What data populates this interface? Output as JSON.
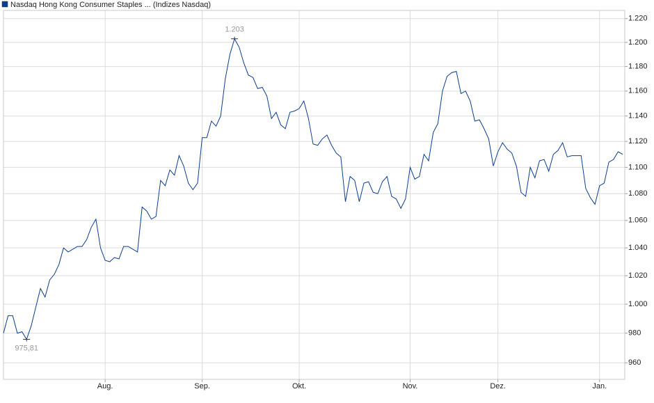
{
  "chart_data": {
    "type": "line",
    "legend": "top-left",
    "grid": true,
    "log": true,
    "categories": [
      null,
      null,
      null,
      null,
      null,
      null,
      null,
      null,
      null,
      null,
      null,
      null,
      null,
      null,
      null,
      null,
      null,
      null,
      null,
      null,
      null,
      null,
      "Aug.",
      null,
      null,
      null,
      null,
      null,
      null,
      null,
      null,
      null,
      null,
      null,
      null,
      null,
      null,
      null,
      null,
      null,
      null,
      null,
      null,
      "Sep.",
      null,
      null,
      null,
      null,
      null,
      null,
      null,
      null,
      null,
      null,
      null,
      null,
      null,
      null,
      null,
      null,
      null,
      null,
      null,
      null,
      "Okt.",
      null,
      null,
      null,
      null,
      null,
      null,
      null,
      null,
      null,
      null,
      null,
      null,
      null,
      null,
      null,
      null,
      null,
      null,
      null,
      null,
      null,
      null,
      null,
      "Nov.",
      null,
      null,
      null,
      null,
      null,
      null,
      null,
      null,
      null,
      null,
      null,
      null,
      null,
      null,
      null,
      null,
      null,
      null,
      "Dez.",
      null,
      null,
      null,
      null,
      null,
      null,
      null,
      null,
      null,
      null,
      null,
      null,
      null,
      null,
      null,
      null,
      null,
      null,
      null,
      null,
      null,
      "Jan.",
      null,
      null,
      null,
      null,
      null
    ],
    "series": [
      {
        "name": "Nasdaq Hong Kong Consumer Staples ... (Indizes Nasdaq)",
        "color": "#0b3d91",
        "values": [
          980,
          992,
          992,
          980,
          981,
          975.81,
          985,
          998,
          1011,
          1005,
          1017,
          1021,
          1028,
          1040,
          1037,
          1039,
          1041,
          1041,
          1046,
          1055,
          1061,
          1040,
          1031,
          1030,
          1033,
          1032,
          1041,
          1041,
          1039,
          1037,
          1070,
          1067,
          1061,
          1063,
          1090,
          1086,
          1098,
          1094,
          1109,
          1101,
          1088,
          1083,
          1088,
          1123,
          1123,
          1136,
          1132,
          1140,
          1170,
          1190,
          1203,
          1196,
          1183,
          1173,
          1171,
          1162,
          1163,
          1156,
          1138,
          1143,
          1133,
          1130,
          1143,
          1144,
          1146,
          1152,
          1138,
          1118,
          1117,
          1122,
          1125,
          1117,
          1111,
          1108,
          1074,
          1093,
          1090,
          1074,
          1088,
          1089,
          1081,
          1080,
          1089,
          1093,
          1078,
          1076,
          1069,
          1076,
          1100,
          1091,
          1093,
          1110,
          1105,
          1127,
          1134,
          1160,
          1172,
          1175,
          1176,
          1158,
          1160,
          1152,
          1136,
          1137,
          1130,
          1122,
          1101,
          1112,
          1119,
          1114,
          1111,
          1101,
          1081,
          1078,
          1100,
          1092,
          1105,
          1106,
          1097,
          1110,
          1113,
          1119,
          1108,
          1109,
          1109,
          1109,
          1084,
          1077,
          1072,
          1086,
          1088,
          1104,
          1106,
          1112,
          1110
        ],
        "value_labels": [
          null,
          null,
          null,
          null,
          null,
          "975,81",
          null,
          null,
          null,
          null,
          null,
          null,
          null,
          null,
          null,
          null,
          null,
          null,
          null,
          null,
          null,
          null,
          null,
          null,
          null,
          null,
          null,
          null,
          null,
          null,
          null,
          null,
          null,
          null,
          null,
          null,
          null,
          null,
          null,
          null,
          null,
          null,
          null,
          null,
          null,
          null,
          null,
          null,
          null,
          null,
          "1.203",
          null,
          null,
          null,
          null,
          null,
          null,
          null,
          null,
          null,
          null,
          null,
          null,
          null,
          null,
          null,
          null,
          null,
          null,
          null,
          null,
          null,
          null,
          null,
          null,
          null,
          null,
          null,
          null,
          null,
          null,
          null,
          null,
          null,
          null,
          null,
          null,
          null,
          null,
          null,
          null,
          null,
          null,
          null,
          null,
          null,
          null,
          null,
          null,
          null,
          null,
          null,
          null,
          null,
          null,
          null,
          null,
          null,
          null,
          null,
          null,
          null,
          null,
          null,
          null,
          null,
          null,
          null,
          null,
          null,
          null,
          null,
          null,
          null,
          null,
          null,
          null,
          null,
          null,
          null,
          null,
          null,
          null,
          null,
          null
        ]
      }
    ],
    "ylim": [
      949,
      1227
    ],
    "yticks": [
      960,
      980,
      {
        "value": 1000,
        "label": "1.000"
      },
      {
        "value": 1020,
        "label": "1.020"
      },
      {
        "value": 1040,
        "label": "1.040"
      },
      {
        "value": 1060,
        "label": "1.060"
      },
      {
        "value": 1080,
        "label": "1.080"
      },
      {
        "value": 1100,
        "label": "1.100"
      },
      {
        "value": 1120,
        "label": "1.120"
      },
      {
        "value": 1140,
        "label": "1.140"
      },
      {
        "value": 1160,
        "label": "1.160"
      },
      {
        "value": 1180,
        "label": "1.180"
      },
      {
        "value": 1200,
        "label": "1.200"
      },
      {
        "value": 1220,
        "label": "1.220"
      }
    ]
  }
}
